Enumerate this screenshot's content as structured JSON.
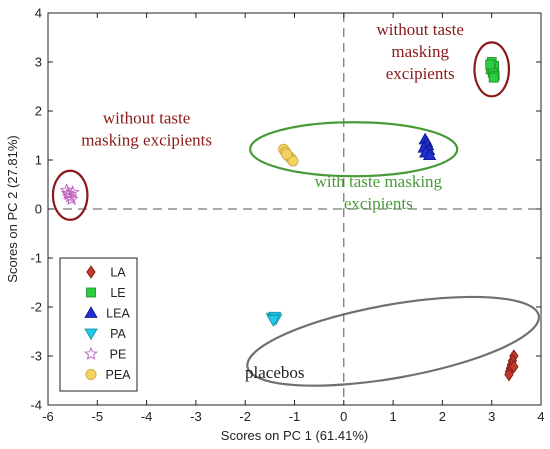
{
  "chart_data": {
    "type": "scatter",
    "xlabel": "Scores on PC 1 (61.41%)",
    "ylabel": "Scores on PC 2 (27.81%)",
    "xlim": [
      -6,
      4
    ],
    "ylim": [
      -4,
      4
    ],
    "xticks": [
      -6,
      -5,
      -4,
      -3,
      -2,
      -1,
      0,
      1,
      2,
      3,
      4
    ],
    "yticks": [
      -4,
      -3,
      -2,
      -1,
      0,
      1,
      2,
      3,
      4
    ],
    "zero_lines": "dashed",
    "legend_position": "bottom-left",
    "series": [
      {
        "name": "LA",
        "marker": "diamond",
        "color": "#c0392b",
        "points": [
          [
            3.45,
            -3.0
          ],
          [
            3.42,
            -3.1
          ],
          [
            3.4,
            -3.18
          ],
          [
            3.38,
            -3.25
          ],
          [
            3.36,
            -3.32
          ],
          [
            3.35,
            -3.38
          ],
          [
            3.45,
            -3.22
          ]
        ]
      },
      {
        "name": "LE",
        "marker": "square",
        "color": "#2ecc40",
        "points": [
          [
            3.0,
            3.0
          ],
          [
            3.05,
            2.92
          ],
          [
            2.98,
            2.85
          ],
          [
            3.02,
            2.78
          ],
          [
            3.06,
            2.72
          ],
          [
            2.97,
            2.95
          ],
          [
            3.04,
            2.68
          ]
        ]
      },
      {
        "name": "LEA",
        "marker": "triangle-up",
        "color": "#1f2ecc",
        "points": [
          [
            1.65,
            1.42
          ],
          [
            1.68,
            1.36
          ],
          [
            1.7,
            1.3
          ],
          [
            1.63,
            1.25
          ],
          [
            1.72,
            1.2
          ],
          [
            1.66,
            1.15
          ],
          [
            1.74,
            1.1
          ]
        ]
      },
      {
        "name": "PA",
        "marker": "triangle-down",
        "color": "#22c8e8",
        "points": [
          [
            -1.45,
            -2.22
          ],
          [
            -1.42,
            -2.25
          ],
          [
            -1.4,
            -2.2
          ],
          [
            -1.38,
            -2.24
          ],
          [
            -1.43,
            -2.27
          ]
        ]
      },
      {
        "name": "PE",
        "marker": "star",
        "color": "#c467c4",
        "points": [
          [
            -5.62,
            0.38
          ],
          [
            -5.58,
            0.3
          ],
          [
            -5.55,
            0.25
          ],
          [
            -5.52,
            0.2
          ],
          [
            -5.6,
            0.32
          ],
          [
            -5.5,
            0.34
          ]
        ]
      },
      {
        "name": "PEA",
        "marker": "circle",
        "color": "#f3d262",
        "points": [
          [
            -1.22,
            1.22
          ],
          [
            -1.18,
            1.16
          ],
          [
            -1.14,
            1.1
          ],
          [
            -1.1,
            1.06
          ],
          [
            -1.06,
            1.02
          ],
          [
            -1.03,
            0.98
          ],
          [
            -1.16,
            1.12
          ]
        ]
      }
    ],
    "ellipses": [
      {
        "name": "ellipse-le",
        "cx": 3.0,
        "cy": 2.85,
        "rx": 0.35,
        "ry": 0.55,
        "rot": 0,
        "color": "#8b1a1a"
      },
      {
        "name": "ellipse-pe",
        "cx": -5.55,
        "cy": 0.28,
        "rx": 0.35,
        "ry": 0.5,
        "rot": 0,
        "color": "#8b1a1a"
      },
      {
        "name": "ellipse-taste-masking",
        "cx": 0.2,
        "cy": 1.22,
        "rx": 2.1,
        "ry": 0.55,
        "rot": 0,
        "color": "#4a9a3a"
      },
      {
        "name": "ellipse-placebos",
        "cx": 1.0,
        "cy": -2.7,
        "rx": 3.0,
        "ry": 0.75,
        "rot": -10,
        "color": "#707070"
      }
    ],
    "annotations": [
      {
        "name": "annotation-le",
        "lines": [
          "without taste",
          "masking",
          "excipients"
        ],
        "color": "#8b1a1a",
        "x": 1.55,
        "y": 3.55
      },
      {
        "name": "annotation-pe",
        "lines": [
          "without taste",
          "masking excipients"
        ],
        "color": "#8b1a1a",
        "x": -4.0,
        "y": 1.75
      },
      {
        "name": "annotation-taste",
        "lines": [
          "with taste masking",
          "excipients"
        ],
        "color": "#4a9a3a",
        "x": 0.7,
        "y": 0.45
      },
      {
        "name": "annotation-placebos",
        "lines": [
          "placebos"
        ],
        "color": "#222222",
        "x": -1.4,
        "y": -3.45
      }
    ]
  }
}
